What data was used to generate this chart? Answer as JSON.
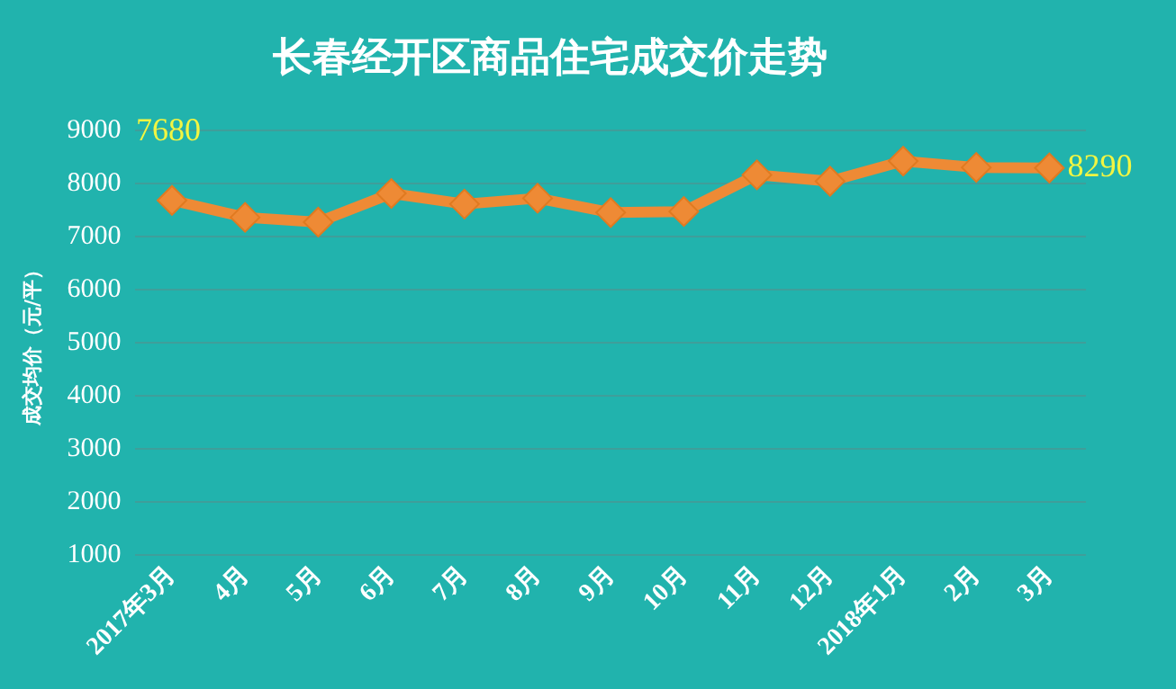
{
  "chart_data": {
    "type": "line",
    "title": "长春经开区商品住宅成交价走势",
    "ylabel": "成交均价（元/平）",
    "categories": [
      "2017年3月",
      "4月",
      "5月",
      "6月",
      "7月",
      "8月",
      "9月",
      "10月",
      "11月",
      "12月",
      "2018年1月",
      "2月",
      "3月"
    ],
    "series": [
      {
        "color": "#ee8a35",
        "values": [
          7680,
          7360,
          7270,
          7810,
          7610,
          7720,
          7450,
          7470,
          8160,
          8040,
          8420,
          8300,
          8290
        ],
        "value_labels": [
          "7680",
          null,
          null,
          null,
          null,
          null,
          null,
          null,
          null,
          null,
          null,
          null,
          "8290"
        ]
      }
    ],
    "ylim": [
      1000,
      9000
    ],
    "yticks": [
      1000,
      2000,
      3000,
      4000,
      5000,
      6000,
      7000,
      8000,
      9000
    ],
    "grid": "y",
    "legend": false,
    "marker": "diamond",
    "line_style": "solid"
  }
}
